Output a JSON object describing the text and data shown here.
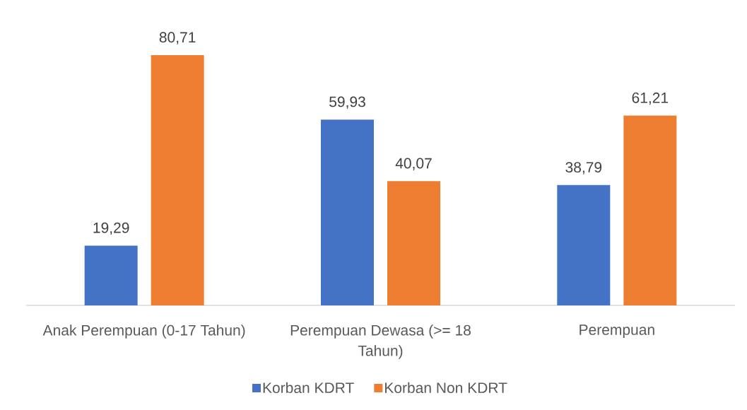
{
  "chart_data": {
    "type": "bar",
    "categories": [
      "Anak Perempuan (0-17 Tahun)",
      "Perempuan Dewasa (>= 18 Tahun)",
      "Perempuan"
    ],
    "series": [
      {
        "name": "Korban KDRT",
        "color": "#4472c4",
        "values": [
          19.29,
          59.93,
          38.79
        ],
        "value_labels": [
          "19,29",
          "59,93",
          "38,79"
        ]
      },
      {
        "name": "Korban Non KDRT",
        "color": "#ed7d31",
        "values": [
          80.71,
          40.07,
          61.21
        ],
        "value_labels": [
          "80,71",
          "40,07",
          "61,21"
        ]
      }
    ],
    "tick_labels": "x",
    "legend": "bottom"
  }
}
